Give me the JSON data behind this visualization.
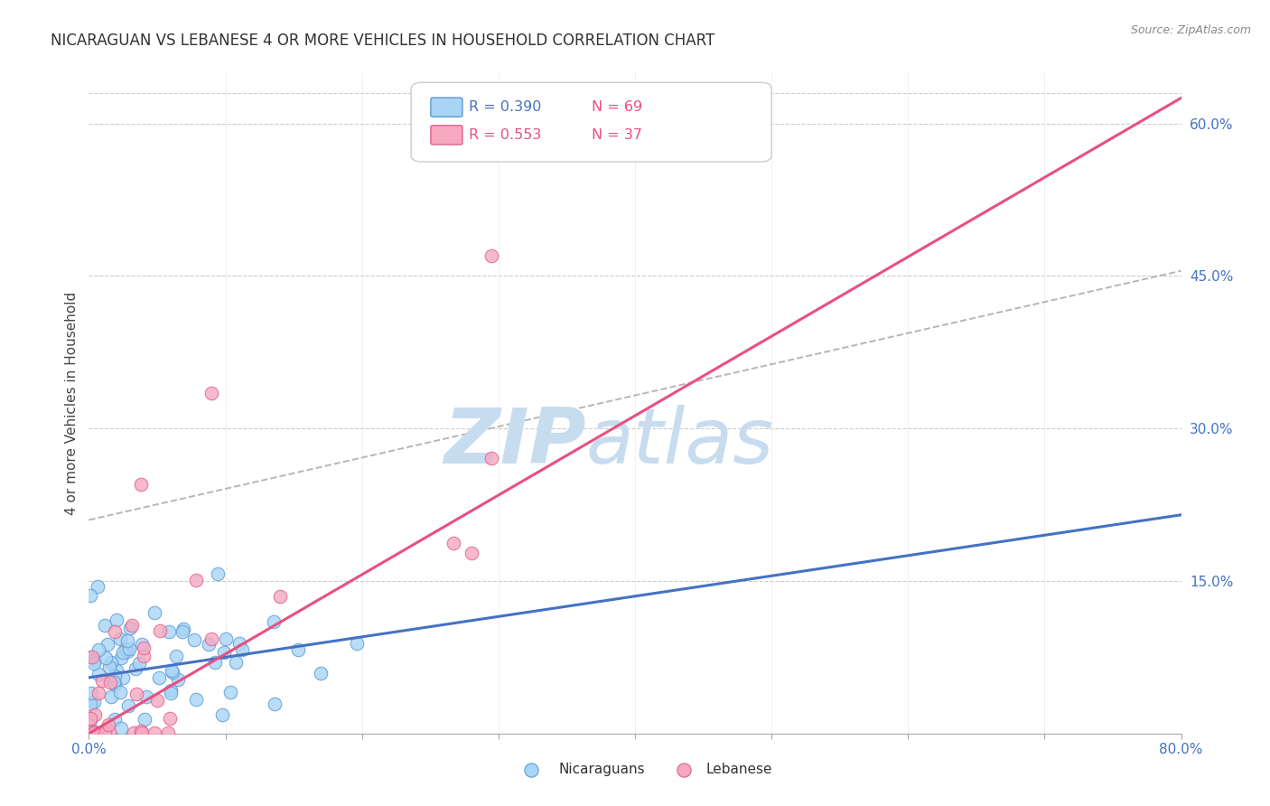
{
  "title": "NICARAGUAN VS LEBANESE 4 OR MORE VEHICLES IN HOUSEHOLD CORRELATION CHART",
  "source": "Source: ZipAtlas.com",
  "ylabel": "4 or more Vehicles in Household",
  "xlim": [
    0.0,
    0.82
  ],
  "ylim": [
    -0.02,
    0.67
  ],
  "plot_xlim": [
    0.0,
    0.8
  ],
  "plot_ylim": [
    0.0,
    0.65
  ],
  "xtick_positions": [
    0.0,
    0.1,
    0.2,
    0.3,
    0.4,
    0.5,
    0.6,
    0.7,
    0.8
  ],
  "xticklabels": [
    "0.0%",
    "",
    "",
    "",
    "",
    "",
    "",
    "",
    "80.0%"
  ],
  "ytick_positions": [
    0.0,
    0.15,
    0.3,
    0.45,
    0.6
  ],
  "yticklabels": [
    "",
    "15.0%",
    "30.0%",
    "45.0%",
    "60.0%"
  ],
  "legend_r1": "R = 0.390",
  "legend_n1": "N = 69",
  "legend_r2": "R = 0.553",
  "legend_n2": "N = 37",
  "color_nicaraguan_fill": "#A8D4F5",
  "color_nicaraguan_edge": "#5B9BD5",
  "color_lebanese_fill": "#F5A8C0",
  "color_lebanese_edge": "#E06090",
  "color_line_nicaraguan": "#4472C4",
  "color_line_lebanese": "#E85080",
  "color_axis_labels": "#4472C4",
  "color_dashed": "#AAAAAA",
  "watermark_zip_color": "#C8DCF0",
  "watermark_atlas_color": "#C8DCF0",
  "background_color": "#FFFFFF",
  "line_nic_x0": 0.0,
  "line_nic_y0": 0.055,
  "line_nic_x1": 0.8,
  "line_nic_y1": 0.215,
  "line_leb_x0": 0.0,
  "line_leb_y0": 0.0,
  "line_leb_x1": 0.8,
  "line_leb_y1": 0.625,
  "line_dash_x0": 0.0,
  "line_dash_y0": 0.21,
  "line_dash_x1": 0.8,
  "line_dash_y1": 0.455
}
